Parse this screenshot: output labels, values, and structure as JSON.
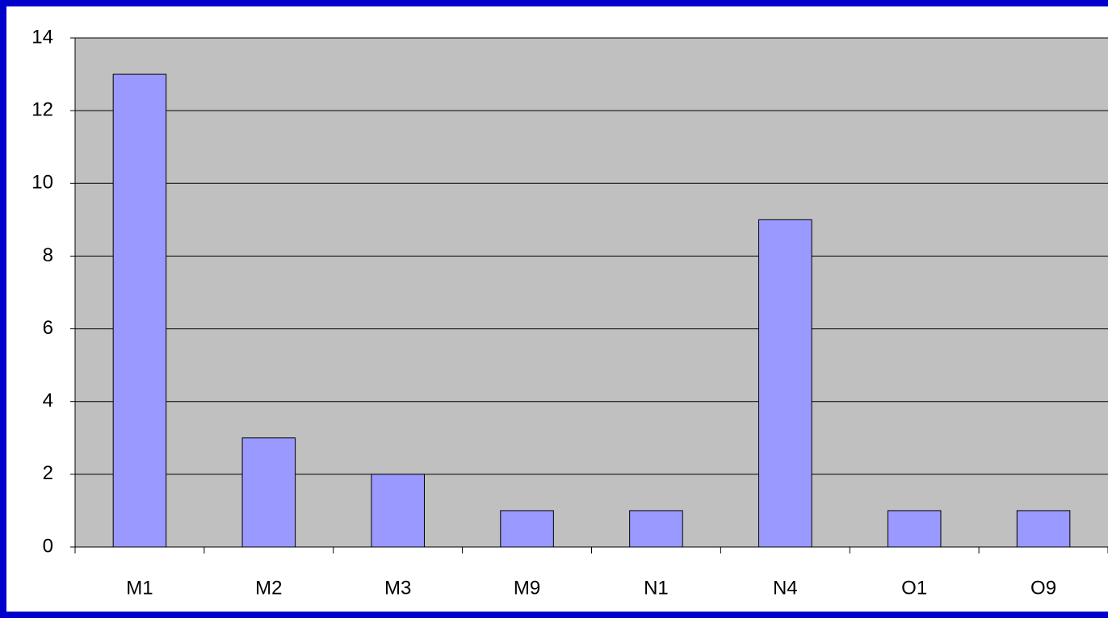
{
  "chart_data": {
    "type": "bar",
    "categories": [
      "M1",
      "M2",
      "M3",
      "M9",
      "N1",
      "N4",
      "O1",
      "O9"
    ],
    "values": [
      13,
      3,
      2,
      1,
      1,
      9,
      1,
      1
    ],
    "color": "#9999ff",
    "ylim": [
      0,
      14
    ],
    "yticks": [
      0,
      2,
      4,
      6,
      8,
      10,
      12,
      14
    ],
    "grid": true
  }
}
